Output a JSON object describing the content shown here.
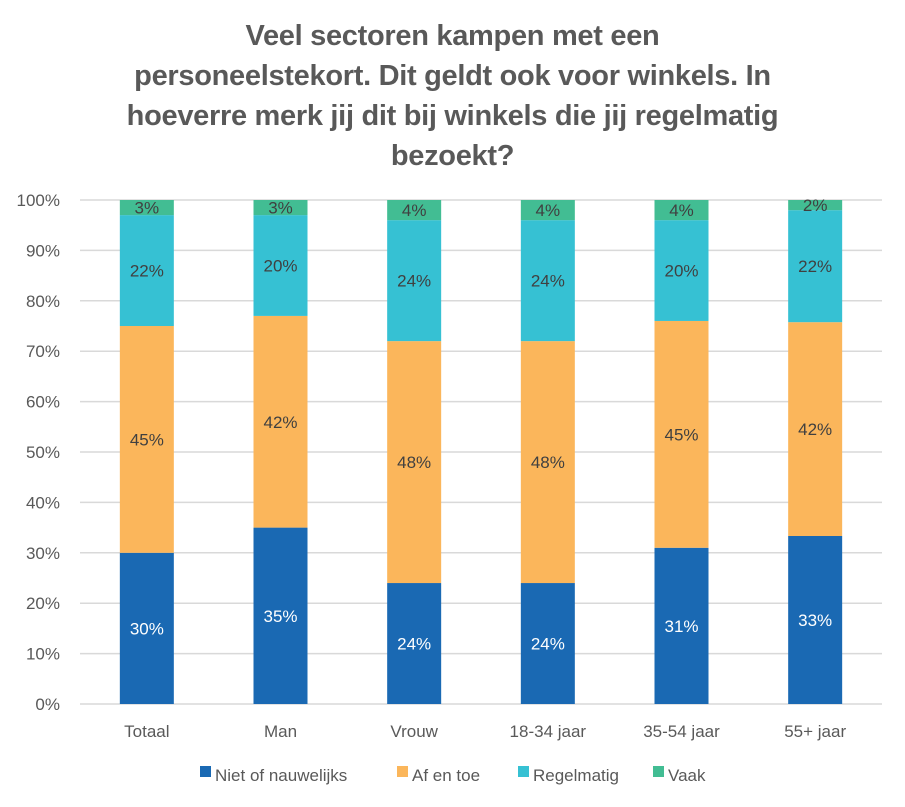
{
  "chart_data": {
    "type": "bar",
    "stacked": true,
    "title_lines": [
      "Veel sectoren kampen met een",
      "personeelstekort. Dit geldt ook voor winkels. In",
      "hoeverre merk jij dit bij winkels die jij regelmatig",
      "bezoekt?"
    ],
    "title": "Veel sectoren kampen met een personeelstekort. Dit geldt ook voor winkels. In hoeverre merk jij dit bij winkels die jij regelmatig bezoekt?",
    "xlabel": "",
    "ylabel": "",
    "ylim": [
      0,
      100
    ],
    "yticks": [
      "0%",
      "10%",
      "20%",
      "30%",
      "40%",
      "50%",
      "60%",
      "70%",
      "80%",
      "90%",
      "100%"
    ],
    "grid": true,
    "legend_position": "bottom",
    "categories": [
      "Totaal",
      "Man",
      "Vrouw",
      "18-34 jaar",
      "35-54 jaar",
      "55+ jaar"
    ],
    "series": [
      {
        "name": "Niet of nauwelijks",
        "color": "#1a69b3",
        "label_color": "#ffffff",
        "values": [
          30,
          35,
          24,
          24,
          31,
          33
        ]
      },
      {
        "name": "Af en toe",
        "color": "#fbb65b",
        "label_color": "#404040",
        "values": [
          45,
          42,
          48,
          48,
          45,
          42
        ]
      },
      {
        "name": "Regelmatig",
        "color": "#36c1d3",
        "label_color": "#404040",
        "values": [
          22,
          20,
          24,
          24,
          20,
          22
        ]
      },
      {
        "name": "Vaak",
        "color": "#42bd93",
        "label_color": "#404040",
        "values": [
          3,
          3,
          4,
          4,
          4,
          2
        ]
      }
    ]
  }
}
